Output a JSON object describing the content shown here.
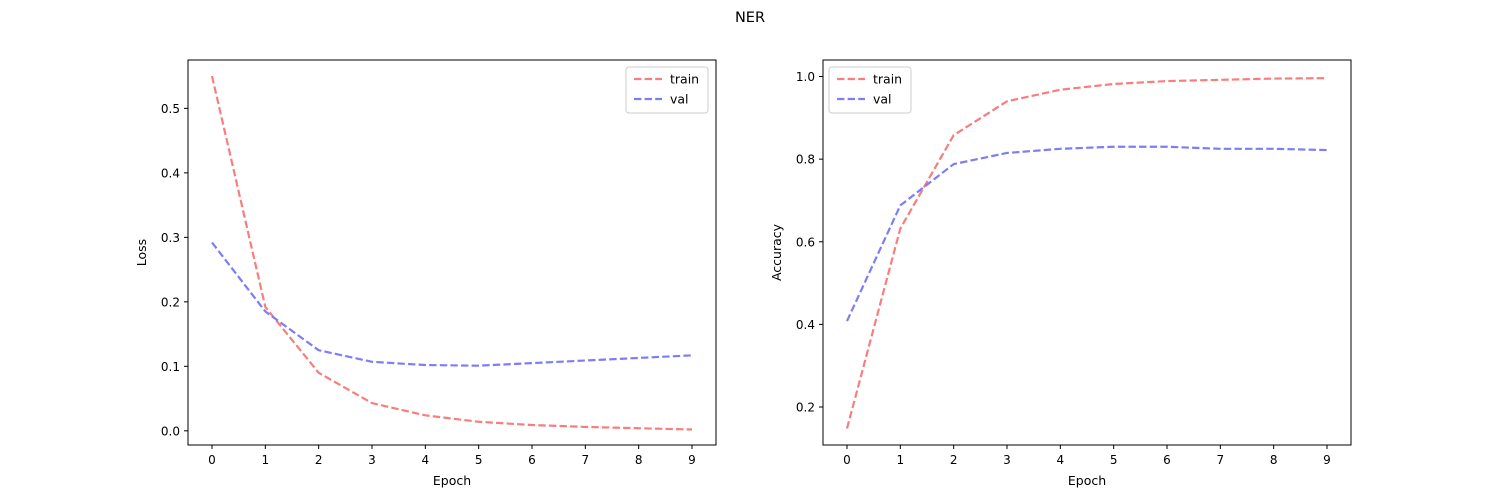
{
  "figure": {
    "suptitle": "NER"
  },
  "colors": {
    "train": "#f87d7d",
    "val": "#7d7df8"
  },
  "chart_data": [
    {
      "type": "line",
      "title": "",
      "xlabel": "Epoch",
      "ylabel": "Loss",
      "x": [
        0,
        1,
        2,
        3,
        4,
        5,
        6,
        7,
        8,
        9
      ],
      "xlim": [
        -0.45,
        9.45
      ],
      "ylim": [
        -0.022,
        0.575
      ],
      "xticks": [
        0,
        1,
        2,
        3,
        4,
        5,
        6,
        7,
        8,
        9
      ],
      "yticks": [
        0.0,
        0.1,
        0.2,
        0.3,
        0.4,
        0.5
      ],
      "ytick_labels": [
        "0.0",
        "0.1",
        "0.2",
        "0.3",
        "0.4",
        "0.5"
      ],
      "grid": false,
      "legend": "top-right",
      "series": [
        {
          "name": "train",
          "values": [
            0.55,
            0.192,
            0.09,
            0.043,
            0.024,
            0.014,
            0.009,
            0.006,
            0.004,
            0.002
          ]
        },
        {
          "name": "val",
          "values": [
            0.292,
            0.185,
            0.125,
            0.107,
            0.102,
            0.101,
            0.105,
            0.109,
            0.113,
            0.117
          ]
        }
      ]
    },
    {
      "type": "line",
      "title": "",
      "xlabel": "Epoch",
      "ylabel": "Accuracy",
      "x": [
        0,
        1,
        2,
        3,
        4,
        5,
        6,
        7,
        8,
        9
      ],
      "xlim": [
        -0.45,
        9.45
      ],
      "ylim": [
        0.108,
        1.04
      ],
      "xticks": [
        0,
        1,
        2,
        3,
        4,
        5,
        6,
        7,
        8,
        9
      ],
      "yticks": [
        0.2,
        0.4,
        0.6,
        0.8,
        1.0
      ],
      "ytick_labels": [
        "0.2",
        "0.4",
        "0.6",
        "0.8",
        "1.0"
      ],
      "grid": false,
      "legend": "top-left",
      "series": [
        {
          "name": "train",
          "values": [
            0.148,
            0.632,
            0.858,
            0.94,
            0.968,
            0.982,
            0.989,
            0.992,
            0.995,
            0.996
          ]
        },
        {
          "name": "val",
          "values": [
            0.408,
            0.688,
            0.788,
            0.815,
            0.825,
            0.83,
            0.83,
            0.825,
            0.825,
            0.822
          ]
        }
      ]
    }
  ]
}
